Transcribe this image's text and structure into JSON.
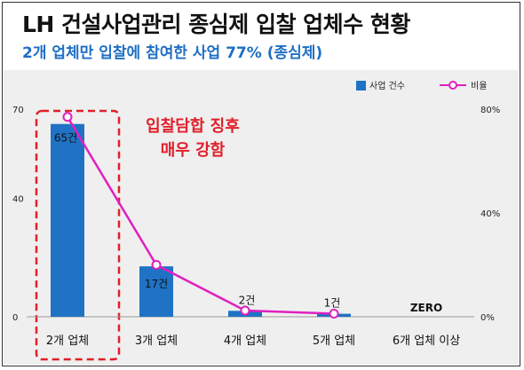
{
  "title": "LH 건설사업관리 종심제 입찰 업체수 현황",
  "subtitle": "2개 업체만 입찰에 참여한 사업 77% (종심제)",
  "chart_data": {
    "type": "bar",
    "categories": [
      "2개 업체",
      "3개 업체",
      "4개 업체",
      "5개 업체",
      "6개 업체 이상"
    ],
    "series": [
      {
        "name": "사업 건수",
        "values": [
          65,
          17,
          2,
          1,
          0
        ],
        "color": "#1f72c4",
        "axis": "left"
      },
      {
        "name": "비율",
        "values": [
          77,
          20,
          2.4,
          1.2,
          0
        ],
        "color": "#e020c0",
        "axis": "right",
        "kind": "line"
      }
    ],
    "data_labels": [
      "65건",
      "17건",
      "2건",
      "1건",
      "ZERO"
    ],
    "left_axis": {
      "ticks": [
        "0",
        "40",
        "70"
      ],
      "range": [
        0,
        70
      ]
    },
    "right_axis": {
      "ticks": [
        "0%",
        "40%",
        "80%"
      ],
      "range": [
        0,
        80
      ]
    },
    "annotation": [
      "입찰담합 징후",
      "매우 강함"
    ],
    "legend": {
      "placement": "top-right"
    },
    "highlight_category": "2개 업체",
    "grid": false
  }
}
